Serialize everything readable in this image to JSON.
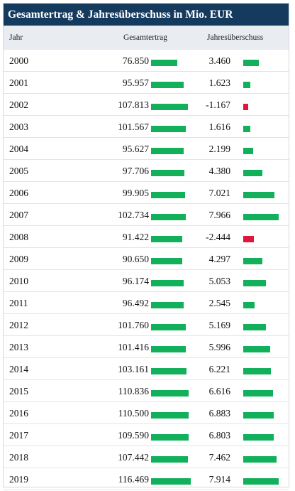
{
  "chart_data": {
    "type": "table",
    "title": "Gesamtertrag & Jahresüberschuss in Mio. EUR",
    "columns": [
      "Jahr",
      "Gesamtertrag",
      "Jahresüberschuss"
    ],
    "rows": [
      {
        "year": "2000",
        "gesamtertrag": "76.850",
        "jahresueberschuss": "3.460",
        "ge_value": 76.85,
        "ju_value": 3.46
      },
      {
        "year": "2001",
        "gesamtertrag": "95.957",
        "jahresueberschuss": "1.623",
        "ge_value": 95.957,
        "ju_value": 1.623
      },
      {
        "year": "2002",
        "gesamtertrag": "107.813",
        "jahresueberschuss": "-1.167",
        "ge_value": 107.813,
        "ju_value": -1.167
      },
      {
        "year": "2003",
        "gesamtertrag": "101.567",
        "jahresueberschuss": "1.616",
        "ge_value": 101.567,
        "ju_value": 1.616
      },
      {
        "year": "2004",
        "gesamtertrag": "95.627",
        "jahresueberschuss": "2.199",
        "ge_value": 95.627,
        "ju_value": 2.199
      },
      {
        "year": "2005",
        "gesamtertrag": "97.706",
        "jahresueberschuss": "4.380",
        "ge_value": 97.706,
        "ju_value": 4.38
      },
      {
        "year": "2006",
        "gesamtertrag": "99.905",
        "jahresueberschuss": "7.021",
        "ge_value": 99.905,
        "ju_value": 7.021
      },
      {
        "year": "2007",
        "gesamtertrag": "102.734",
        "jahresueberschuss": "7.966",
        "ge_value": 102.734,
        "ju_value": 7.966
      },
      {
        "year": "2008",
        "gesamtertrag": "91.422",
        "jahresueberschuss": "-2.444",
        "ge_value": 91.422,
        "ju_value": -2.444
      },
      {
        "year": "2009",
        "gesamtertrag": "90.650",
        "jahresueberschuss": "4.297",
        "ge_value": 90.65,
        "ju_value": 4.297
      },
      {
        "year": "2010",
        "gesamtertrag": "96.174",
        "jahresueberschuss": "5.053",
        "ge_value": 96.174,
        "ju_value": 5.053
      },
      {
        "year": "2011",
        "gesamtertrag": "96.492",
        "jahresueberschuss": "2.545",
        "ge_value": 96.492,
        "ju_value": 2.545
      },
      {
        "year": "2012",
        "gesamtertrag": "101.760",
        "jahresueberschuss": "5.169",
        "ge_value": 101.76,
        "ju_value": 5.169
      },
      {
        "year": "2013",
        "gesamtertrag": "101.416",
        "jahresueberschuss": "5.996",
        "ge_value": 101.416,
        "ju_value": 5.996
      },
      {
        "year": "2014",
        "gesamtertrag": "103.161",
        "jahresueberschuss": "6.221",
        "ge_value": 103.161,
        "ju_value": 6.221
      },
      {
        "year": "2015",
        "gesamtertrag": "110.836",
        "jahresueberschuss": "6.616",
        "ge_value": 110.836,
        "ju_value": 6.616
      },
      {
        "year": "2016",
        "gesamtertrag": "110.500",
        "jahresueberschuss": "6.883",
        "ge_value": 110.5,
        "ju_value": 6.883
      },
      {
        "year": "2017",
        "gesamtertrag": "109.590",
        "jahresueberschuss": "6.803",
        "ge_value": 109.59,
        "ju_value": 6.803
      },
      {
        "year": "2018",
        "gesamtertrag": "107.442",
        "jahresueberschuss": "7.462",
        "ge_value": 107.442,
        "ju_value": 7.462
      },
      {
        "year": "2019",
        "gesamtertrag": "116.469",
        "jahresueberschuss": "7.914",
        "ge_value": 116.469,
        "ju_value": 7.914
      }
    ],
    "colors": {
      "positive": "#13b05c",
      "negative": "#e0173d",
      "title_bg": "#143a5e",
      "header_bg": "#e9ecf1"
    }
  }
}
